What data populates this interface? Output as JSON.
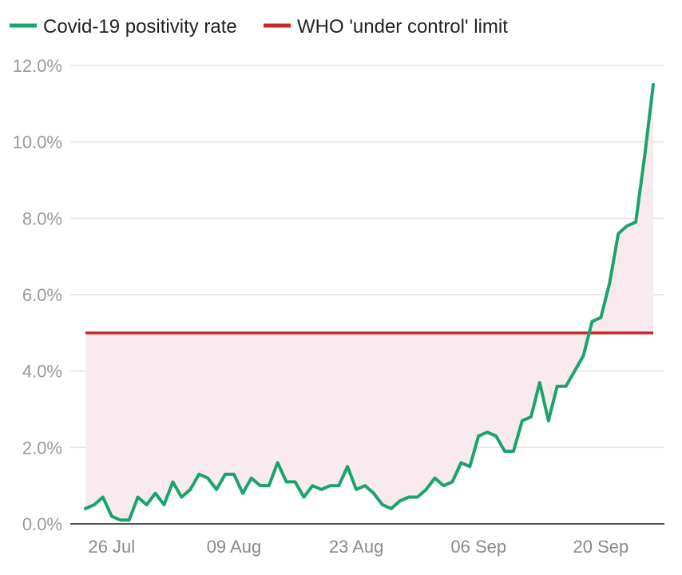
{
  "chart_data": {
    "type": "line",
    "title": "",
    "xlabel": "",
    "ylabel": "",
    "ylim": [
      0,
      12
    ],
    "grid": true,
    "legend_position": "top-left",
    "x_start_date": "2020-07-23",
    "x_ticks": [
      {
        "date": "2020-07-26",
        "label": "26 Jul"
      },
      {
        "date": "2020-08-09",
        "label": "09 Aug"
      },
      {
        "date": "2020-08-23",
        "label": "23 Aug"
      },
      {
        "date": "2020-09-06",
        "label": "06 Sep"
      },
      {
        "date": "2020-09-20",
        "label": "20 Sep"
      }
    ],
    "y_ticks": [
      {
        "value": 0,
        "label": "0.0%"
      },
      {
        "value": 2,
        "label": "2.0%"
      },
      {
        "value": 4,
        "label": "4.0%"
      },
      {
        "value": 6,
        "label": "6.0%"
      },
      {
        "value": 8,
        "label": "8.0%"
      },
      {
        "value": 10,
        "label": "10.0%"
      },
      {
        "value": 12,
        "label": "12.0%"
      }
    ],
    "series": [
      {
        "name": "Covid-19 positivity rate",
        "color": "#1aa36b",
        "values": [
          0.4,
          0.5,
          0.7,
          0.2,
          0.1,
          0.1,
          0.7,
          0.5,
          0.8,
          0.5,
          1.1,
          0.7,
          0.9,
          1.3,
          1.2,
          0.9,
          1.3,
          1.3,
          0.8,
          1.2,
          1.0,
          1.0,
          1.6,
          1.1,
          1.1,
          0.7,
          1.0,
          0.9,
          1.0,
          1.0,
          1.5,
          0.9,
          1.0,
          0.8,
          0.5,
          0.4,
          0.6,
          0.7,
          0.7,
          0.9,
          1.2,
          1.0,
          1.1,
          1.6,
          1.5,
          2.3,
          2.4,
          2.3,
          1.9,
          1.9,
          2.7,
          2.8,
          3.7,
          2.7,
          3.6,
          3.6,
          4.0,
          4.4,
          5.3,
          5.4,
          6.3,
          7.6,
          7.8,
          7.9,
          9.6,
          11.5
        ]
      },
      {
        "name": "WHO 'under control' limit",
        "color": "#c62828",
        "constant": 5.0
      }
    ],
    "fill_color": "#f9eaef"
  }
}
